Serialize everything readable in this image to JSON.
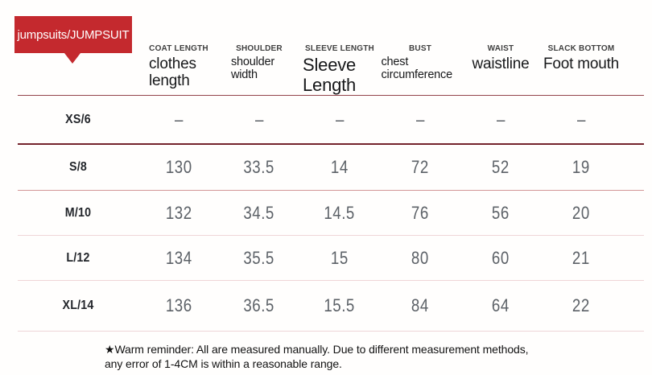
{
  "badge": {
    "label": "jumpsuits/JUMPSUIT",
    "color": "#c4292e"
  },
  "table": {
    "columns": [
      {
        "label": "COAT LENGTH",
        "sublabel": "clothes length"
      },
      {
        "label": "SHOULDER",
        "sublabel": "shoulder width"
      },
      {
        "label": "SLEEVE LENGTH",
        "sublabel": "Sleeve Length"
      },
      {
        "label": "BUST",
        "sublabel": "chest circumference"
      },
      {
        "label": "WAIST",
        "sublabel": "waistline"
      },
      {
        "label": "SLACK BOTTOM",
        "sublabel": "Foot mouth"
      }
    ],
    "rows": [
      {
        "size": "XS/6",
        "values": [
          "–",
          "–",
          "–",
          "–",
          "–",
          "–"
        ]
      },
      {
        "size": "S/8",
        "values": [
          "130",
          "33.5",
          "14",
          "72",
          "52",
          "19"
        ]
      },
      {
        "size": "M/10",
        "values": [
          "132",
          "34.5",
          "14.5",
          "76",
          "56",
          "20"
        ]
      },
      {
        "size": "L/12",
        "values": [
          "134",
          "35.5",
          "15",
          "80",
          "60",
          "21"
        ]
      },
      {
        "size": "XL/14",
        "values": [
          "136",
          "36.5",
          "15.5",
          "84",
          "64",
          "22"
        ]
      }
    ]
  },
  "footer": {
    "note": "★Warm reminder: All are measured manually. Due to different measurement methods, any error of 1-4CM is within a reasonable range."
  },
  "colors": {
    "badge_red": "#c4292e",
    "header_rule": "#94444b",
    "dark_rule": "#74232c",
    "mid_rule": "#d29697",
    "light_rule": "#efd5d7"
  }
}
